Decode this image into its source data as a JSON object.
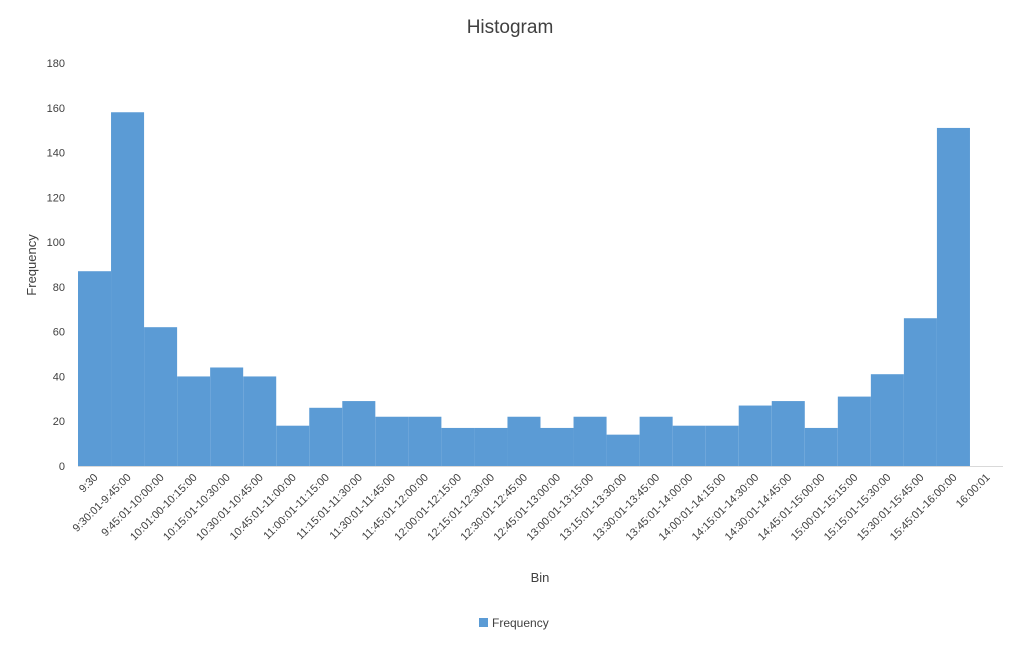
{
  "chart_data": {
    "type": "bar",
    "title": "Histogram",
    "xlabel": "Bin",
    "ylabel": "Frequency",
    "ylim": [
      0,
      180
    ],
    "yticks": [
      0,
      20,
      40,
      60,
      80,
      100,
      120,
      140,
      160,
      180
    ],
    "grid": false,
    "legend_position": "bottom",
    "bar_color": "#5B9BD5",
    "categories": [
      "9:30",
      "9:30:01-9:45:00",
      "9:45:01-10:00:00",
      "10:01:00-10:15:00",
      "10:15:01-10:30:00",
      "10:30:01-10:45:00",
      "10:45:01-11:00:00",
      "11:00:01-11:15:00",
      "11:15:01-11:30:00",
      "11:30:01-11:45:00",
      "11:45:01-12:00:00",
      "12:00:01-12:15:00",
      "12:15:01-12:30:00",
      "12:30:01-12:45:00",
      "12:45:01-13:00:00",
      "13:00:01-13:15:00",
      "13:15:01-13:30:00",
      "13:30:01-13:45:00",
      "13:45:01-14:00:00",
      "14:00:01-14:15:00",
      "14:15:01-14:30:00",
      "14:30:01-14:45:00",
      "14:45:01-15:00:00",
      "15:00:01-15:15:00",
      "15:15:01-15:30:00",
      "15:30:01-15:45:00",
      "15:45:01-16:00:00",
      "16:00:01"
    ],
    "series": [
      {
        "name": "Frequency",
        "values": [
          87,
          158,
          62,
          40,
          44,
          40,
          18,
          26,
          29,
          22,
          22,
          17,
          17,
          22,
          17,
          22,
          14,
          22,
          18,
          18,
          27,
          29,
          17,
          31,
          41,
          66,
          151,
          0
        ]
      }
    ]
  }
}
